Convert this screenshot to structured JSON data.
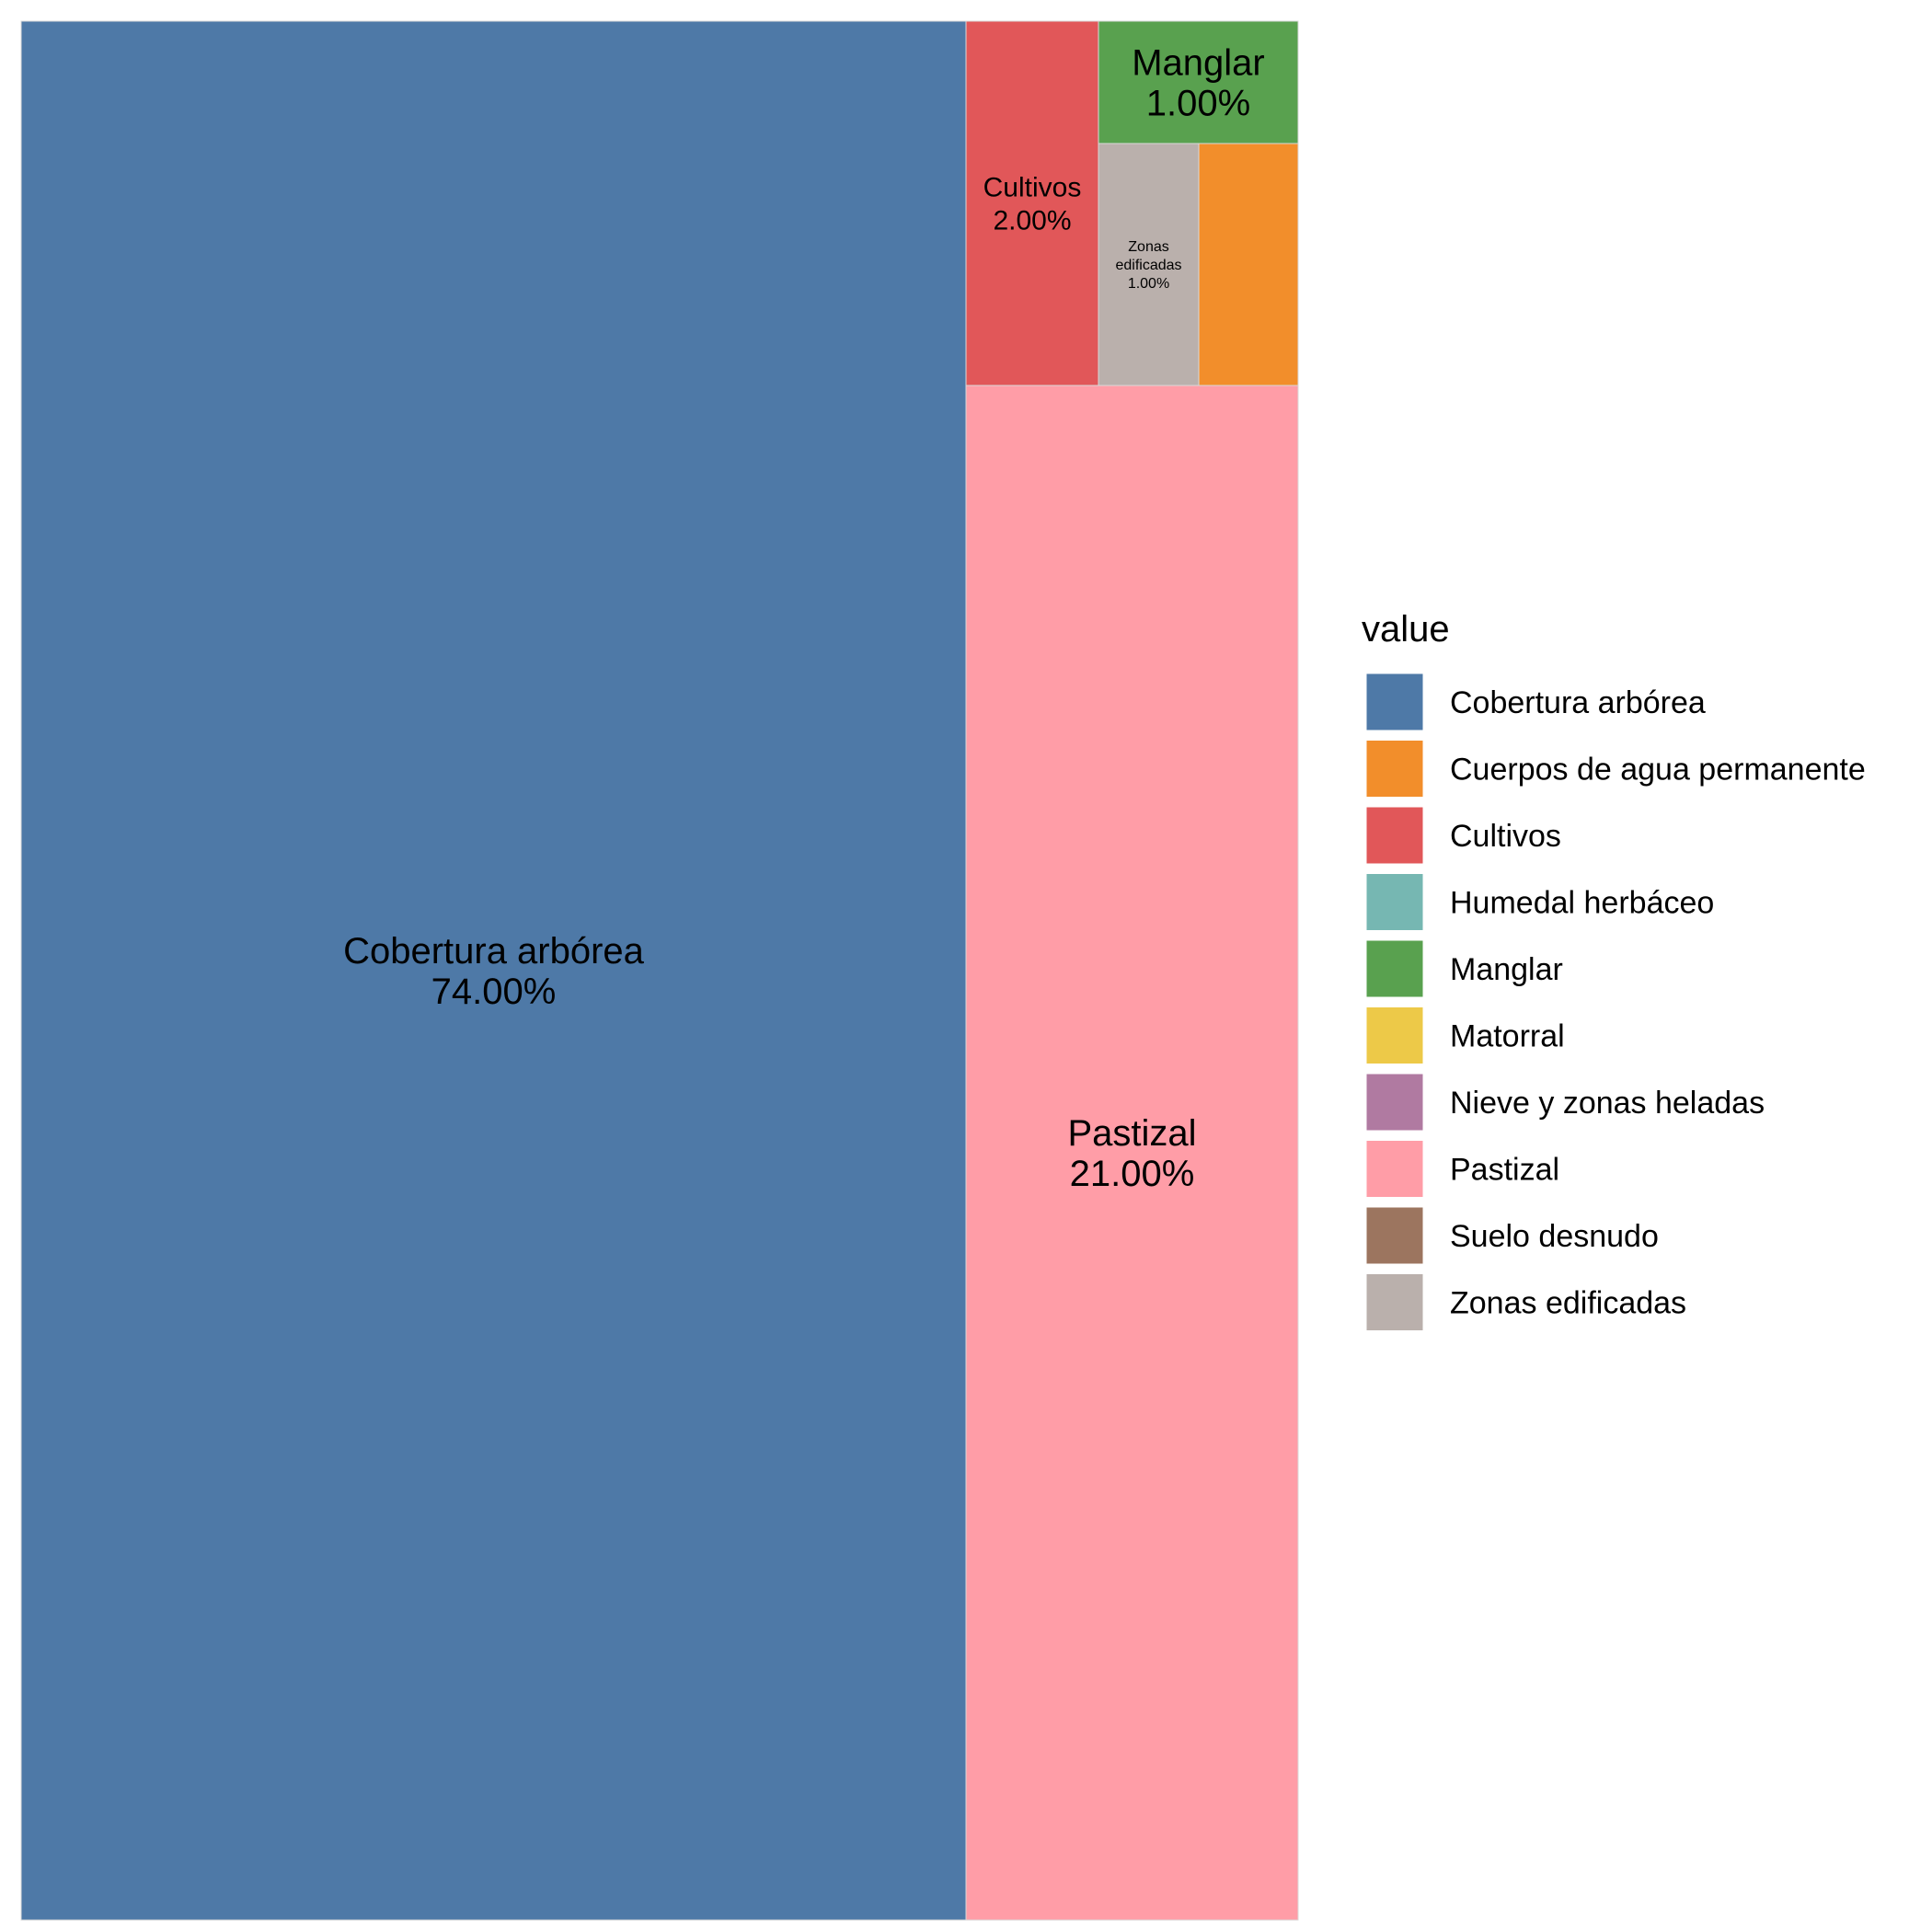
{
  "chart_data": {
    "type": "treemap",
    "title": "",
    "legend": {
      "title": "value",
      "position": "right",
      "items": [
        {
          "label": "Cobertura arbórea",
          "color": "#4E79A7"
        },
        {
          "label": "Cuerpos de agua permanente",
          "color": "#F28E2B"
        },
        {
          "label": "Cultivos",
          "color": "#E15759"
        },
        {
          "label": "Humedal herbáceo",
          "color": "#76B7B2"
        },
        {
          "label": "Manglar",
          "color": "#59A14F"
        },
        {
          "label": "Matorral",
          "color": "#EDC948"
        },
        {
          "label": "Nieve y zonas heladas",
          "color": "#B07AA1"
        },
        {
          "label": "Pastizal",
          "color": "#FF9DA7"
        },
        {
          "label": "Suelo desnudo",
          "color": "#9C755F"
        },
        {
          "label": "Zonas edificadas",
          "color": "#BAB0AC"
        }
      ]
    },
    "tiles": [
      {
        "name": "Cobertura arbórea",
        "value": 74.0,
        "label": "Cobertura arbórea",
        "pct": "74.00%",
        "color": "#4E79A7"
      },
      {
        "name": "Pastizal",
        "value": 21.0,
        "label": "Pastizal",
        "pct": "21.00%",
        "color": "#FF9DA7"
      },
      {
        "name": "Cultivos",
        "value": 2.0,
        "label": "Cultivos",
        "pct": "2.00%",
        "color": "#E15759"
      },
      {
        "name": "Manglar",
        "value": 1.0,
        "label": "Manglar",
        "pct": "1.00%",
        "color": "#59A14F"
      },
      {
        "name": "Zonas edificadas",
        "value": 1.0,
        "label": "Zonas\nedificadas",
        "pct": "1.00%",
        "color": "#BAB0AC"
      },
      {
        "name": "Cuerpos de agua permanente",
        "value": 1.0,
        "label": "",
        "pct": "",
        "color": "#F28E2B"
      }
    ]
  }
}
